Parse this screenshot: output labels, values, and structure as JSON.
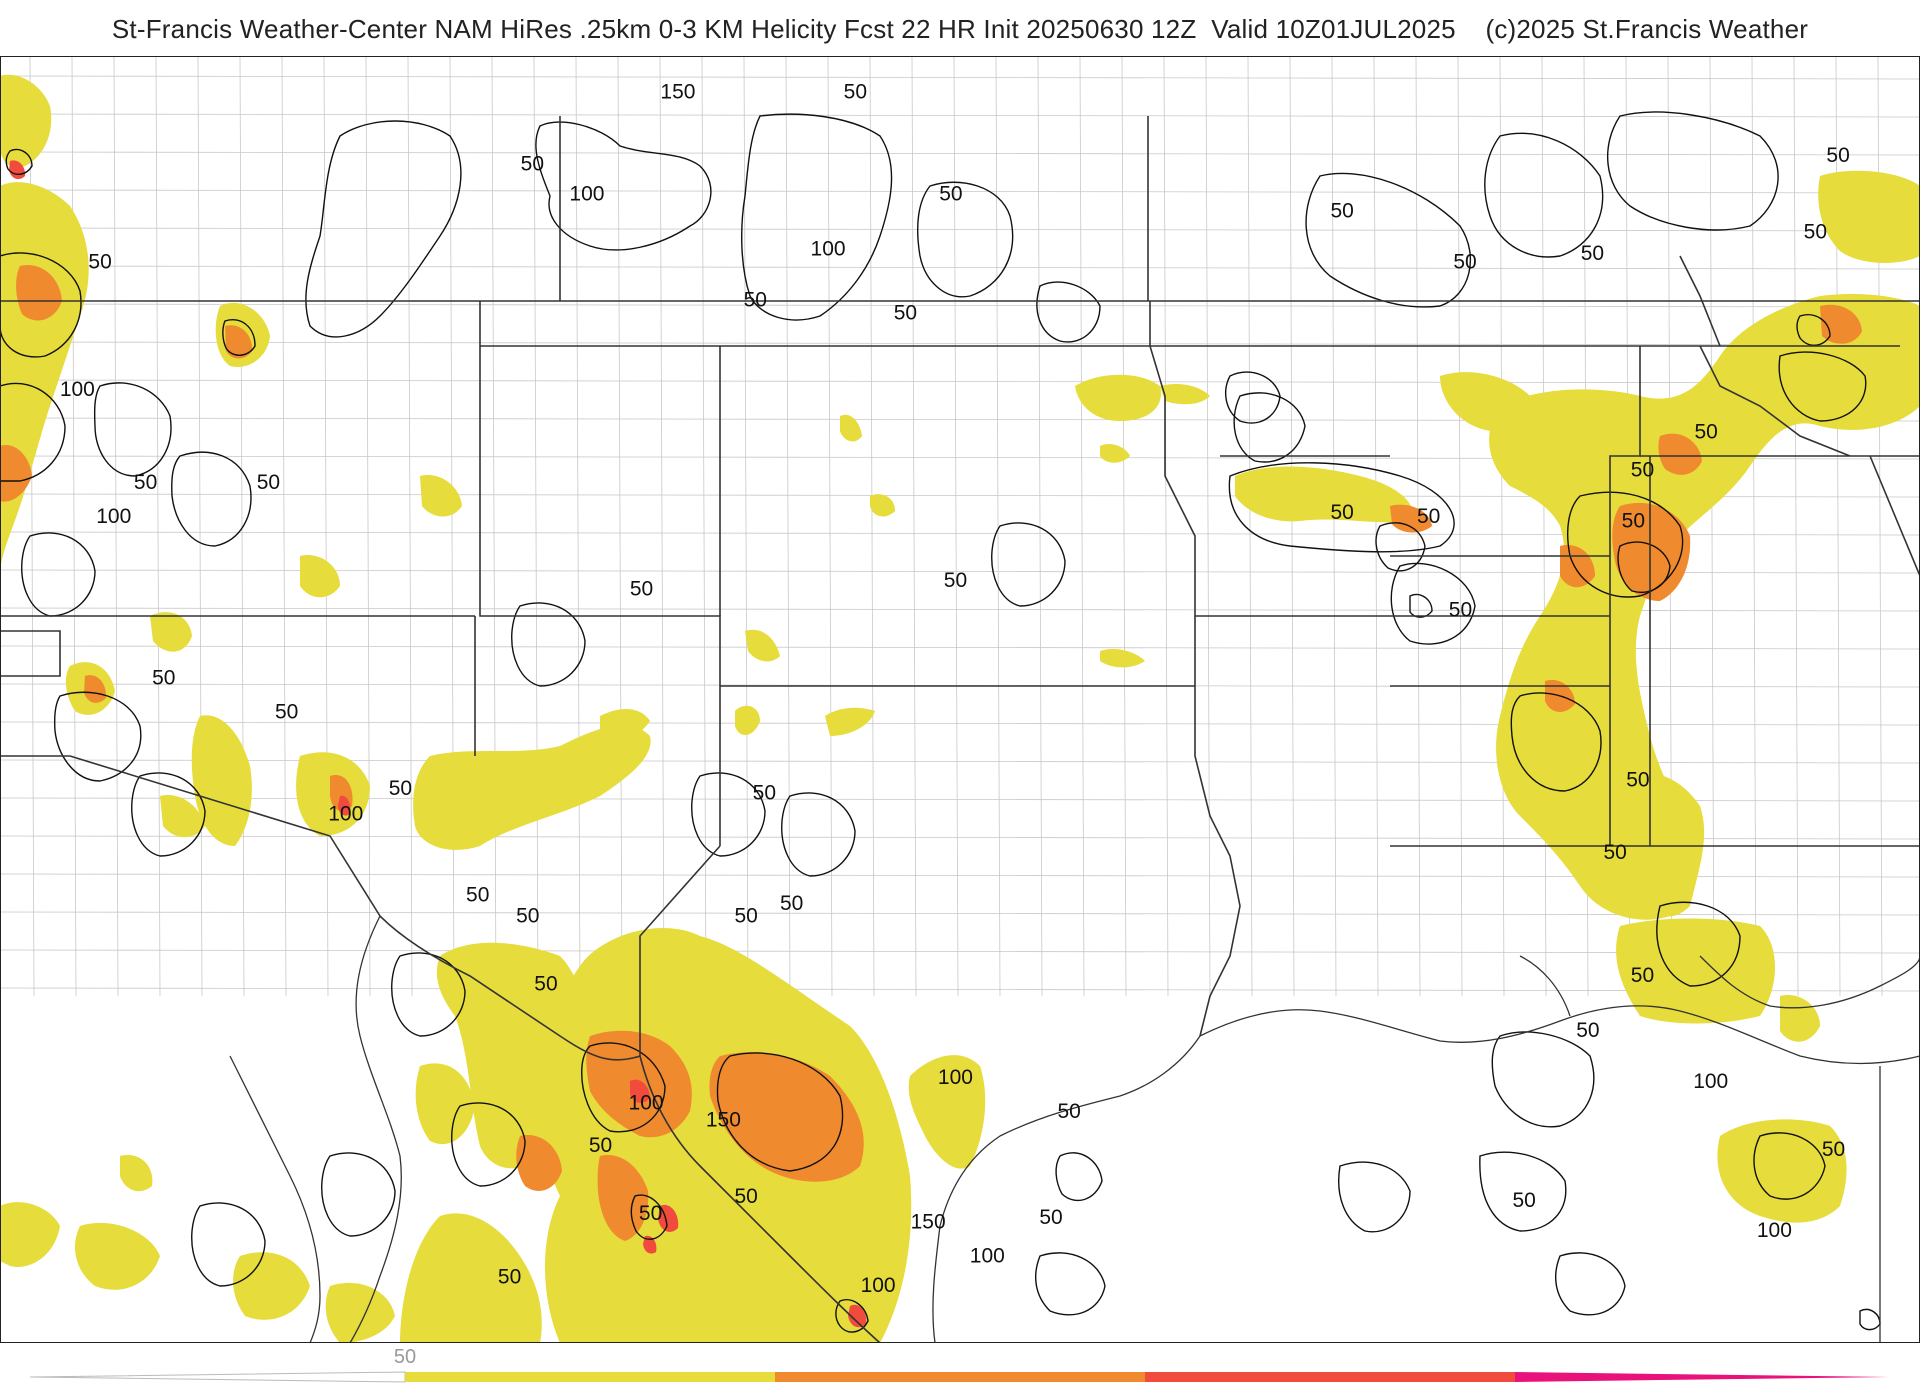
{
  "title": "St-Francis Weather-Center NAM HiRes .25km 0-3 KM Helicity Fcst 22 HR Init 20250630 12Z  Valid 10Z01JUL2025    (c)2025 St.Francis Weather",
  "colors": {
    "band_50": "#e6dc3c",
    "band_100": "#f08a2e",
    "band_150": "#f04b3c",
    "band_200": "#e8127a",
    "contour": "#111111",
    "state_border": "#333333",
    "county_line": "#c8c8c8"
  },
  "contour_labels": [
    {
      "text": "150",
      "lon": -102.8,
      "lat": 44.8
    },
    {
      "text": "50",
      "lon": -98.9,
      "lat": 44.8
    },
    {
      "text": "50",
      "lon": -106.0,
      "lat": 43.1
    },
    {
      "text": "100",
      "lon": -104.8,
      "lat": 42.4
    },
    {
      "text": "50",
      "lon": -96.8,
      "lat": 42.4
    },
    {
      "text": "100",
      "lon": -99.5,
      "lat": 41.1
    },
    {
      "text": "50",
      "lon": -101.1,
      "lat": 39.9
    },
    {
      "text": "50",
      "lon": -97.8,
      "lat": 39.6
    },
    {
      "text": "50",
      "lon": -88.2,
      "lat": 42.0
    },
    {
      "text": "50",
      "lon": -85.5,
      "lat": 40.8
    },
    {
      "text": "50",
      "lon": -82.7,
      "lat": 41.0
    },
    {
      "text": "50",
      "lon": -77.3,
      "lat": 43.3
    },
    {
      "text": "50",
      "lon": -77.8,
      "lat": 41.5
    },
    {
      "text": "50",
      "lon": -115.5,
      "lat": 40.8
    },
    {
      "text": "100",
      "lon": -116.0,
      "lat": 37.8
    },
    {
      "text": "50",
      "lon": -114.5,
      "lat": 35.6
    },
    {
      "text": "50",
      "lon": -111.8,
      "lat": 35.6
    },
    {
      "text": "100",
      "lon": -115.2,
      "lat": 34.8
    },
    {
      "text": "50",
      "lon": -103.6,
      "lat": 33.1
    },
    {
      "text": "50",
      "lon": -96.7,
      "lat": 33.3
    },
    {
      "text": "50",
      "lon": -88.2,
      "lat": 34.9
    },
    {
      "text": "50",
      "lon": -86.3,
      "lat": 34.8
    },
    {
      "text": "50",
      "lon": -81.8,
      "lat": 34.7
    },
    {
      "text": "50",
      "lon": -81.6,
      "lat": 35.9
    },
    {
      "text": "50",
      "lon": -80.2,
      "lat": 36.8
    },
    {
      "text": "50",
      "lon": -85.6,
      "lat": 32.6
    },
    {
      "text": "50",
      "lon": -114.1,
      "lat": 31.0
    },
    {
      "text": "50",
      "lon": -111.4,
      "lat": 30.2
    },
    {
      "text": "50",
      "lon": -108.9,
      "lat": 28.4
    },
    {
      "text": "100",
      "lon": -110.1,
      "lat": 27.8
    },
    {
      "text": "50",
      "lon": -100.9,
      "lat": 28.3
    },
    {
      "text": "50",
      "lon": -107.2,
      "lat": 25.9
    },
    {
      "text": "50",
      "lon": -106.1,
      "lat": 25.4
    },
    {
      "text": "50",
      "lon": -100.3,
      "lat": 25.7
    },
    {
      "text": "50",
      "lon": -101.3,
      "lat": 25.4
    },
    {
      "text": "50",
      "lon": -82.2,
      "lat": 26.9
    },
    {
      "text": "50",
      "lon": -81.7,
      "lat": 28.6
    },
    {
      "text": "50",
      "lon": -105.7,
      "lat": 23.8
    },
    {
      "text": "50",
      "lon": -82.8,
      "lat": 22.7
    },
    {
      "text": "50",
      "lon": -81.6,
      "lat": 24.0
    },
    {
      "text": "100",
      "lon": -96.7,
      "lat": 21.6
    },
    {
      "text": "100",
      "lon": -103.5,
      "lat": 21.0
    },
    {
      "text": "150",
      "lon": -101.8,
      "lat": 20.6
    },
    {
      "text": "50",
      "lon": -94.2,
      "lat": 20.8
    },
    {
      "text": "100",
      "lon": -80.1,
      "lat": 21.5
    },
    {
      "text": "50",
      "lon": -104.5,
      "lat": 20.0
    },
    {
      "text": "50",
      "lon": -101.3,
      "lat": 18.8
    },
    {
      "text": "50",
      "lon": -103.4,
      "lat": 18.4
    },
    {
      "text": "150",
      "lon": -97.3,
      "lat": 18.2
    },
    {
      "text": "50",
      "lon": -94.6,
      "lat": 18.3
    },
    {
      "text": "50",
      "lon": -84.2,
      "lat": 18.7
    },
    {
      "text": "50",
      "lon": -77.4,
      "lat": 19.9
    },
    {
      "text": "100",
      "lon": -96.0,
      "lat": 17.4
    },
    {
      "text": "100",
      "lon": -78.7,
      "lat": 18.0
    },
    {
      "text": "50",
      "lon": -106.5,
      "lat": 16.9
    },
    {
      "text": "100",
      "lon": -98.4,
      "lat": 16.7
    }
  ],
  "legend": {
    "label": "50"
  }
}
